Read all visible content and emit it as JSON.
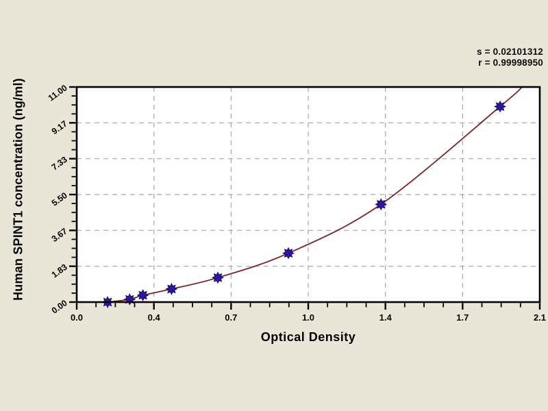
{
  "colors": {
    "background": "#e9e6d8",
    "plot_background": "#ffffff",
    "frame": "#000000",
    "grid": "#a6a6a6",
    "curve": "#7b2323",
    "marker": "#2c16a0",
    "marker_outline": "#1a0a6e",
    "text": "#000000"
  },
  "stats": {
    "s_label": "s = 0.02101312",
    "r_label": "r = 0.99998950"
  },
  "chart_data": {
    "type": "scatter",
    "title": "",
    "xlabel": "Optical Density",
    "ylabel": "Human SPINT1 concentration (ng/ml)",
    "xlim": [
      0,
      2.1
    ],
    "ylim": [
      0,
      11
    ],
    "x_ticks": [
      0,
      0.35,
      0.7,
      1.05,
      1.4,
      1.75,
      2.1
    ],
    "x_tick_labels": [
      "0.0",
      "0.4",
      "0.7",
      "1.0",
      "1.4",
      "1.7",
      "2.1"
    ],
    "y_ticks": [
      0,
      1.8333,
      3.6667,
      5.5,
      7.3333,
      9.1667,
      11
    ],
    "y_tick_labels": [
      "0.00",
      "1.83",
      "3.67",
      "5.50",
      "7.33",
      "9.17",
      "11.00"
    ],
    "minor_subdivisions": 4,
    "grid": "dashed gray lines at interior major ticks, both axes",
    "legend": "none",
    "series": [
      {
        "name": "standard curve points",
        "marker": "8-point star",
        "points": [
          [
            0.14,
            0.0
          ],
          [
            0.24,
            0.14
          ],
          [
            0.3,
            0.35
          ],
          [
            0.43,
            0.67
          ],
          [
            0.64,
            1.25
          ],
          [
            0.96,
            2.5
          ],
          [
            1.38,
            5.0
          ],
          [
            1.92,
            10.0
          ]
        ]
      }
    ],
    "fit_curve": {
      "name": "fitted standard curve",
      "extends_to": [
        2.02,
        11.0
      ]
    }
  }
}
